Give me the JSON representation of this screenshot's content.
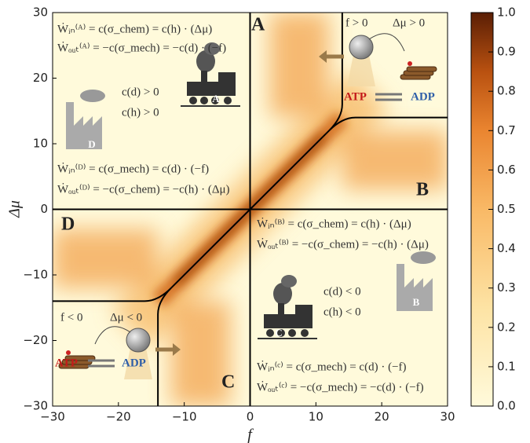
{
  "chart_data": {
    "type": "heatmap",
    "xlabel": "f",
    "ylabel": "Δμ",
    "xlim": [
      -30,
      30
    ],
    "ylim": [
      -30,
      30
    ],
    "xticks": [
      {
        "value": -30,
        "label": "−30"
      },
      {
        "value": -20,
        "label": "−20"
      },
      {
        "value": -10,
        "label": "−10"
      },
      0,
      10,
      20,
      30
    ],
    "yticks": [
      {
        "value": -30,
        "label": "−30"
      },
      {
        "value": -20,
        "label": "−20"
      },
      {
        "value": -10,
        "label": "−10"
      },
      0,
      10,
      20,
      30
    ],
    "colorbar": {
      "lim": [
        0,
        1
      ],
      "ticks": [
        {
          "value": 0,
          "label": "0.0"
        },
        0.1,
        0.2,
        0.3,
        0.4,
        0.5,
        0.6,
        0.7,
        0.8,
        0.9,
        {
          "value": 1,
          "label": "1.0"
        }
      ]
    },
    "annotations": [
      "A",
      "B",
      "C",
      "D",
      "Ẇᵢₙ⁽ᴬ⁾ = c(σ_chem) = c(h) · (Δμ)",
      "Ẇₒᵤₜ⁽ᴬ⁾ = −c(σ_mech) = −c(d) · (−f)",
      "c(d) > 0",
      "c(h) > 0",
      "Ẇᵢₙ⁽ᴰ⁾ = c(σ_mech) = c(d) · (−f)",
      "Ẇₒᵤₜ⁽ᴰ⁾ = −c(σ_chem) = −c(h) · (Δμ)",
      "f > 0",
      "Δμ > 0",
      "ATP",
      "ADP",
      "Ẇᵢₙ⁽ᴮ⁾ = c(σ_chem) = c(h) · (Δμ)",
      "Ẇₒᵤₜ⁽ᴮ⁾ = −c(σ_chem) = −c(h) · (Δμ)",
      "c(d) < 0",
      "c(h) < 0",
      "f < 0",
      "Δμ < 0",
      "ATP",
      "ADP",
      "Ẇᵢₙ⁽ᶜ⁾ = c(σ_mech) = c(d) · (−f)",
      "Ẇₒᵤₜ⁽ᶜ⁾ = −c(σ_mech) = −c(d) · (−f)",
      "A",
      "D",
      "B",
      "C"
    ]
  }
}
